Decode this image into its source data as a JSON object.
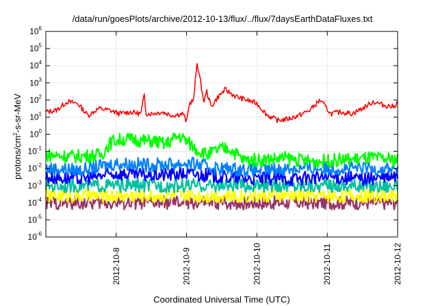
{
  "chart_data": {
    "type": "line",
    "title": "/data/run/goesPlots/archive/2012-10-13/flux/../flux/7daysEarthDataFluxes.txt",
    "xlabel": "Coordinated Universal Time (UTC)",
    "ylabel": {
      "pre": "protons/cm",
      "sup": "2",
      "post": "-s-sr-MeV"
    },
    "yscale": "log",
    "ylim_exp": [
      -6,
      6
    ],
    "y_tick_labels": [
      {
        "base": "10",
        "exp": "-6"
      },
      {
        "base": "10",
        "exp": "-5"
      },
      {
        "base": "10",
        "exp": "-4"
      },
      {
        "base": "10",
        "exp": "-3"
      },
      {
        "base": "10",
        "exp": "-2"
      },
      {
        "base": "10",
        "exp": "-1"
      },
      {
        "base": "10",
        "exp": "0"
      },
      {
        "base": "10",
        "exp": "1"
      },
      {
        "base": "10",
        "exp": "2"
      },
      {
        "base": "10",
        "exp": "3"
      },
      {
        "base": "10",
        "exp": "4"
      },
      {
        "base": "10",
        "exp": "5"
      },
      {
        "base": "10",
        "exp": "6"
      }
    ],
    "x_range_days": [
      "2012-10-07 00:00",
      "2012-10-12 00:00"
    ],
    "x_tick_labels": [
      "2012-10-8",
      "2012-10-9",
      "2012-10-10",
      "2012-10-11",
      "2012-10-12"
    ],
    "grid": true,
    "colors": {
      "red": "#ff0000",
      "green": "#00ff00",
      "blue": "#0000ff",
      "lightblue": "#0080ff",
      "teal": "#00c0a0",
      "yellow": "#ffff00",
      "purple": "#993366"
    },
    "series": [
      {
        "color_key": "red",
        "t": [
          0.0,
          0.15,
          0.3,
          0.45,
          0.6,
          0.75,
          0.9,
          1.05,
          1.2,
          1.35,
          1.4,
          1.42,
          1.44,
          1.5,
          1.65,
          1.8,
          1.95,
          2.0,
          2.04,
          2.1,
          2.15,
          2.25,
          2.28,
          2.35,
          2.45,
          2.55,
          2.7,
          2.85,
          3.0,
          3.15,
          3.3,
          3.45,
          3.6,
          3.75,
          3.9,
          4.05,
          4.2,
          4.35,
          4.5,
          4.65,
          4.8,
          4.95,
          5.0
        ],
        "log10_flux": [
          1.3,
          1.4,
          1.9,
          1.8,
          1.1,
          1.5,
          1.4,
          1.2,
          1.3,
          1.2,
          2.3,
          1.3,
          1.2,
          1.2,
          1.3,
          1.1,
          1.2,
          0.7,
          1.8,
          2.0,
          4.2,
          1.8,
          2.6,
          1.6,
          2.2,
          2.6,
          2.2,
          2.0,
          1.8,
          1.1,
          0.8,
          0.9,
          1.1,
          1.4,
          2.0,
          1.2,
          1.3,
          1.2,
          1.5,
          1.9,
          1.7,
          1.6,
          1.9
        ]
      },
      {
        "color_key": "green",
        "t": [
          0.0,
          0.4,
          0.8,
          0.85,
          0.95,
          1.1,
          1.25,
          1.4,
          1.55,
          1.7,
          1.8,
          1.9,
          2.0,
          2.15,
          2.3,
          2.45,
          2.6,
          2.75,
          2.8,
          3.0,
          3.4,
          3.8,
          4.2,
          4.6,
          5.0
        ],
        "log10_flux": [
          -1.2,
          -1.3,
          -1.2,
          -0.8,
          -0.4,
          -0.3,
          -0.3,
          -0.4,
          -0.4,
          -0.6,
          -0.3,
          -0.1,
          -0.4,
          -0.9,
          -1.2,
          -0.9,
          -0.8,
          -1.3,
          -1.5,
          -1.5,
          -1.4,
          -1.6,
          -1.5,
          -1.4,
          -1.5
        ]
      },
      {
        "color_key": "lightblue",
        "t": [
          0.0,
          0.5,
          1.0,
          1.5,
          2.0,
          2.5,
          3.0,
          3.5,
          4.0,
          4.5,
          5.0
        ],
        "log10_flux": [
          -2.0,
          -2.1,
          -1.7,
          -1.8,
          -1.7,
          -2.0,
          -2.1,
          -2.0,
          -2.0,
          -2.0,
          -2.0
        ]
      },
      {
        "color_key": "blue",
        "t": [
          0.0,
          0.5,
          1.0,
          1.5,
          2.0,
          2.5,
          3.0,
          3.5,
          4.0,
          4.5,
          5.0
        ],
        "log10_flux": [
          -2.5,
          -2.6,
          -2.3,
          -2.4,
          -2.3,
          -2.5,
          -2.6,
          -2.6,
          -2.5,
          -2.6,
          -2.5
        ]
      },
      {
        "color_key": "teal",
        "t": [
          0.0,
          0.5,
          1.0,
          1.5,
          2.0,
          2.5,
          3.0,
          3.5,
          4.0,
          4.5,
          5.0
        ],
        "log10_flux": [
          -3.0,
          -3.0,
          -3.0,
          -3.0,
          -3.0,
          -3.0,
          -3.0,
          -3.0,
          -3.0,
          -3.0,
          -3.0
        ]
      },
      {
        "color_key": "yellow",
        "t": [
          0.0,
          0.5,
          1.0,
          1.5,
          2.0,
          2.5,
          3.0,
          3.5,
          4.0,
          4.5,
          5.0
        ],
        "log10_flux": [
          -3.6,
          -3.6,
          -3.6,
          -3.6,
          -3.6,
          -3.6,
          -3.6,
          -3.6,
          -3.6,
          -3.6,
          -3.6
        ]
      },
      {
        "color_key": "purple",
        "t": [
          0.0,
          0.5,
          1.0,
          1.5,
          2.0,
          2.5,
          3.0,
          3.5,
          4.0,
          4.5,
          5.0
        ],
        "log10_flux": [
          -4.0,
          -4.0,
          -4.0,
          -4.0,
          -4.0,
          -4.0,
          -4.0,
          -4.0,
          -4.0,
          -4.0,
          -4.0
        ]
      }
    ]
  }
}
